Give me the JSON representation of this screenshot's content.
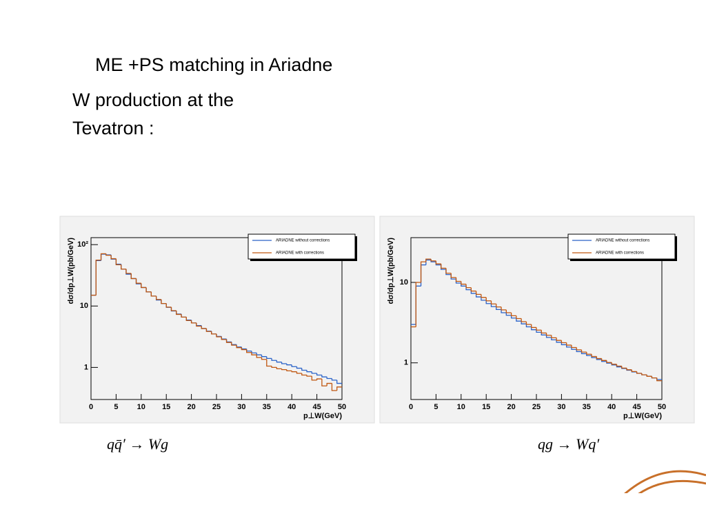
{
  "slide": {
    "title": "ME +PS matching in Ariadne",
    "text": [
      "W production at the",
      "Tevatron :"
    ]
  },
  "captions": [
    "qq̄′ → Wg",
    "qg → Wq′"
  ],
  "chart_data": [
    {
      "type": "histogram",
      "ylabel": "dσ/dp⊥W(pb/GeV)",
      "xlabel": "p⊥W(GeV)",
      "xlim": [
        0,
        50
      ],
      "xticks": [
        0,
        5,
        10,
        15,
        20,
        25,
        30,
        35,
        40,
        45,
        50
      ],
      "ylim": [
        0.3,
        130
      ],
      "ylog": true,
      "yticks": [
        1,
        10,
        {
          "value": 100,
          "label": "10²"
        }
      ],
      "grid": false,
      "legend": "top-right",
      "bins": [
        0,
        1,
        2,
        3,
        4,
        5,
        6,
        7,
        8,
        9,
        10,
        11,
        12,
        13,
        14,
        15,
        16,
        17,
        18,
        19,
        20,
        21,
        22,
        23,
        24,
        25,
        26,
        27,
        28,
        29,
        30,
        31,
        32,
        33,
        34,
        35,
        36,
        37,
        38,
        39,
        40,
        41,
        42,
        43,
        44,
        45,
        46,
        47,
        48,
        49,
        50
      ],
      "series": [
        {
          "name": "ARIADNE without corrections",
          "color": "#2a62c8",
          "values": [
            15,
            55,
            70,
            68,
            58,
            48,
            40,
            33,
            28,
            23,
            20,
            17,
            14.5,
            12.5,
            11,
            9.5,
            8.3,
            7.4,
            6.6,
            5.9,
            5.3,
            4.8,
            4.3,
            3.9,
            3.5,
            3.2,
            2.9,
            2.6,
            2.35,
            2.15,
            2.0,
            1.85,
            1.72,
            1.6,
            1.5,
            1.4,
            1.3,
            1.22,
            1.15,
            1.1,
            1.03,
            0.97,
            0.9,
            0.85,
            0.8,
            0.75,
            0.7,
            0.66,
            0.62,
            0.55
          ]
        },
        {
          "name": "ARIADNE with corrections",
          "color": "#c0560f",
          "values": [
            15,
            56,
            71,
            67,
            59,
            47,
            40,
            34,
            28,
            23.5,
            20,
            17,
            14.5,
            12.8,
            11,
            9.6,
            8.4,
            7.3,
            6.6,
            5.8,
            5.3,
            4.7,
            4.3,
            3.85,
            3.5,
            3.15,
            2.85,
            2.55,
            2.3,
            2.1,
            1.95,
            1.75,
            1.6,
            1.45,
            1.35,
            1.05,
            1.0,
            0.95,
            0.92,
            0.88,
            0.85,
            0.8,
            0.75,
            0.72,
            0.62,
            0.65,
            0.5,
            0.55,
            0.42,
            0.48
          ]
        }
      ]
    },
    {
      "type": "histogram",
      "ylabel": "dσ/dp⊥W(pb/GeV)",
      "xlabel": "p⊥W(GeV)",
      "xlim": [
        0,
        50
      ],
      "xticks": [
        0,
        5,
        10,
        15,
        20,
        25,
        30,
        35,
        40,
        45,
        50
      ],
      "ylim": [
        0.35,
        36
      ],
      "ylog": true,
      "yticks": [
        1,
        10
      ],
      "grid": false,
      "legend": "top-right",
      "bins": [
        0,
        1,
        2,
        3,
        4,
        5,
        6,
        7,
        8,
        9,
        10,
        11,
        12,
        13,
        14,
        15,
        16,
        17,
        18,
        19,
        20,
        21,
        22,
        23,
        24,
        25,
        26,
        27,
        28,
        29,
        30,
        31,
        32,
        33,
        34,
        35,
        36,
        37,
        38,
        39,
        40,
        41,
        42,
        43,
        44,
        45,
        46,
        47,
        48,
        49,
        50
      ],
      "series": [
        {
          "name": "ARIADNE without corrections",
          "color": "#2a62c8",
          "values": [
            3,
            9,
            16.5,
            19,
            18,
            16.5,
            14.5,
            12.5,
            11,
            9.8,
            9,
            8.1,
            7.3,
            6.6,
            6.0,
            5.45,
            5.0,
            4.6,
            4.2,
            3.9,
            3.6,
            3.3,
            3.05,
            2.8,
            2.58,
            2.4,
            2.22,
            2.07,
            1.93,
            1.8,
            1.68,
            1.57,
            1.47,
            1.38,
            1.3,
            1.23,
            1.16,
            1.1,
            1.04,
            0.99,
            0.94,
            0.89,
            0.85,
            0.81,
            0.77,
            0.74,
            0.71,
            0.68,
            0.65,
            0.62
          ]
        },
        {
          "name": "ARIADNE with corrections",
          "color": "#c0560f",
          "values": [
            2.8,
            10,
            18,
            19.5,
            18.5,
            17,
            15,
            13,
            11.5,
            10.3,
            9.5,
            8.6,
            7.8,
            7.1,
            6.5,
            5.9,
            5.4,
            4.95,
            4.55,
            4.2,
            3.85,
            3.55,
            3.25,
            3.0,
            2.75,
            2.55,
            2.35,
            2.2,
            2.05,
            1.9,
            1.78,
            1.66,
            1.55,
            1.45,
            1.36,
            1.28,
            1.2,
            1.13,
            1.07,
            1.01,
            0.96,
            0.91,
            0.86,
            0.82,
            0.78,
            0.74,
            0.71,
            0.68,
            0.65,
            0.6
          ]
        }
      ]
    }
  ]
}
